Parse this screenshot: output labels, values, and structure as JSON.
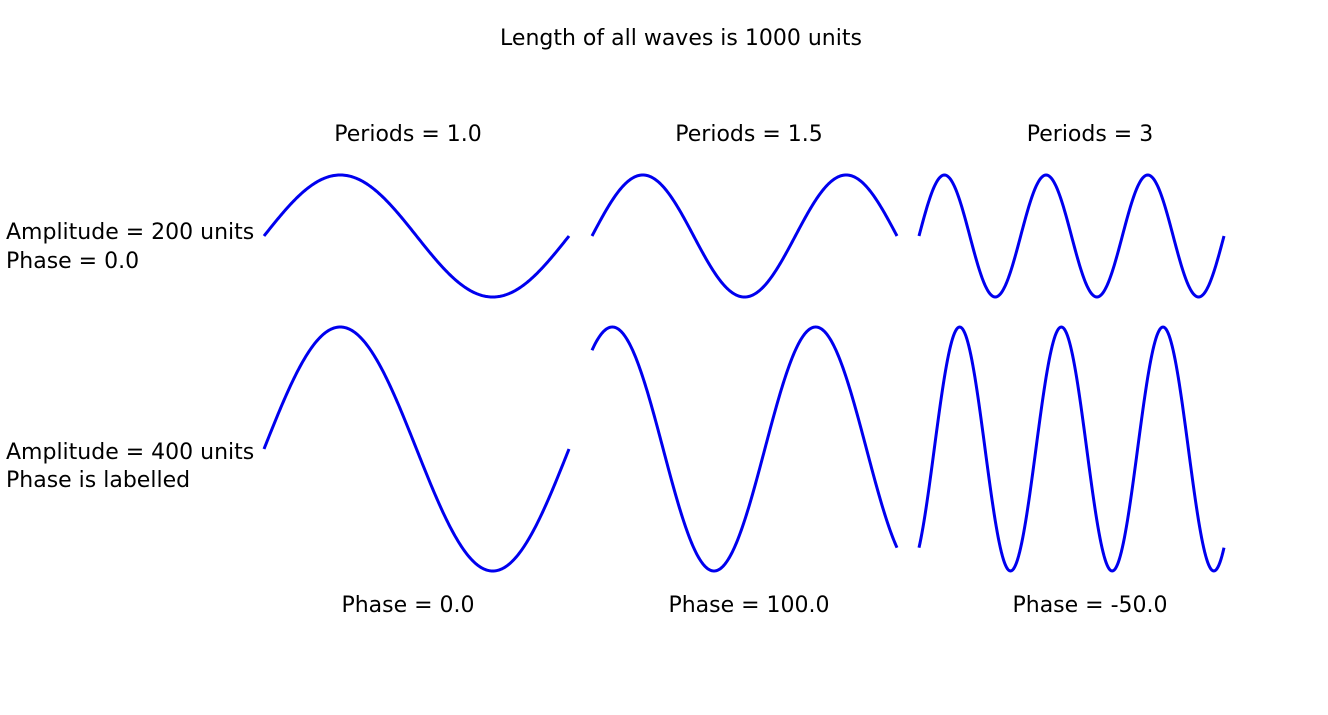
{
  "title": "Length of all waves is 1000 units",
  "columns": [
    {
      "label": "Periods = 1.0",
      "phase_label": "Phase = 0.0"
    },
    {
      "label": "Periods = 1.5",
      "phase_label": "Phase = 100.0"
    },
    {
      "label": "Periods = 3",
      "phase_label": "Phase = -50.0"
    }
  ],
  "rows": [
    {
      "lines": [
        "Amplitude = 200 units",
        "Phase = 0.0"
      ]
    },
    {
      "lines": [
        "Amplitude = 400 units",
        "Phase is labelled"
      ]
    }
  ]
}
